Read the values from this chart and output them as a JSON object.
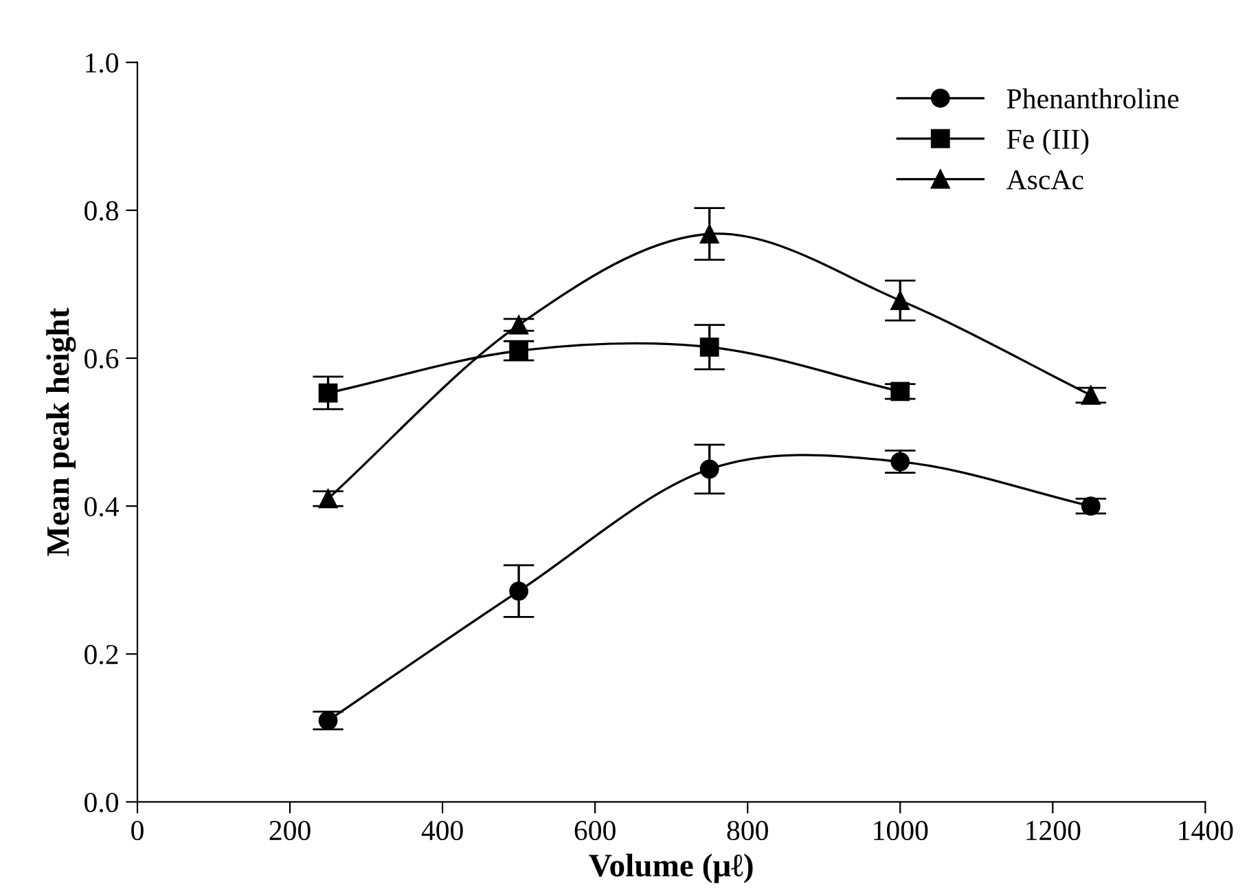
{
  "chart_data": {
    "type": "line",
    "xlabel": "Volume (μℓ)",
    "ylabel": "Mean peak height",
    "x": [
      250,
      500,
      750,
      1000,
      1250
    ],
    "series": [
      {
        "name": "Phenanthroline",
        "color": "#000000",
        "marker": "circle",
        "values": [
          0.11,
          0.285,
          0.45,
          0.46,
          0.4
        ],
        "errors": [
          0.012,
          0.035,
          0.033,
          0.015,
          0.01
        ]
      },
      {
        "name": "Fe (III)",
        "color": "#000000",
        "marker": "square",
        "values": [
          0.553,
          0.61,
          0.615,
          0.555,
          null
        ],
        "errors": [
          0.022,
          0.013,
          0.03,
          0.01,
          null
        ]
      },
      {
        "name": "AscAc",
        "color": "#000000",
        "marker": "triangle",
        "values": [
          0.41,
          0.645,
          0.768,
          0.678,
          0.55
        ],
        "errors": [
          0.01,
          0.008,
          0.035,
          0.027,
          0.01
        ]
      }
    ],
    "xlim": [
      0,
      1400
    ],
    "xticks": [
      0,
      200,
      400,
      600,
      800,
      1000,
      1200,
      1400
    ],
    "ylim": [
      0.0,
      1.0
    ],
    "yticks": [
      {
        "value": 0.0,
        "label": "0.0"
      },
      {
        "value": 0.2,
        "label": "0.2"
      },
      {
        "value": 0.4,
        "label": "0.4"
      },
      {
        "value": 0.6,
        "label": "0.6"
      },
      {
        "value": 0.8,
        "label": "0.8"
      },
      {
        "value": 1.0,
        "label": "1.0"
      }
    ],
    "legend": "top right",
    "line_style": "solid",
    "grid": false
  }
}
